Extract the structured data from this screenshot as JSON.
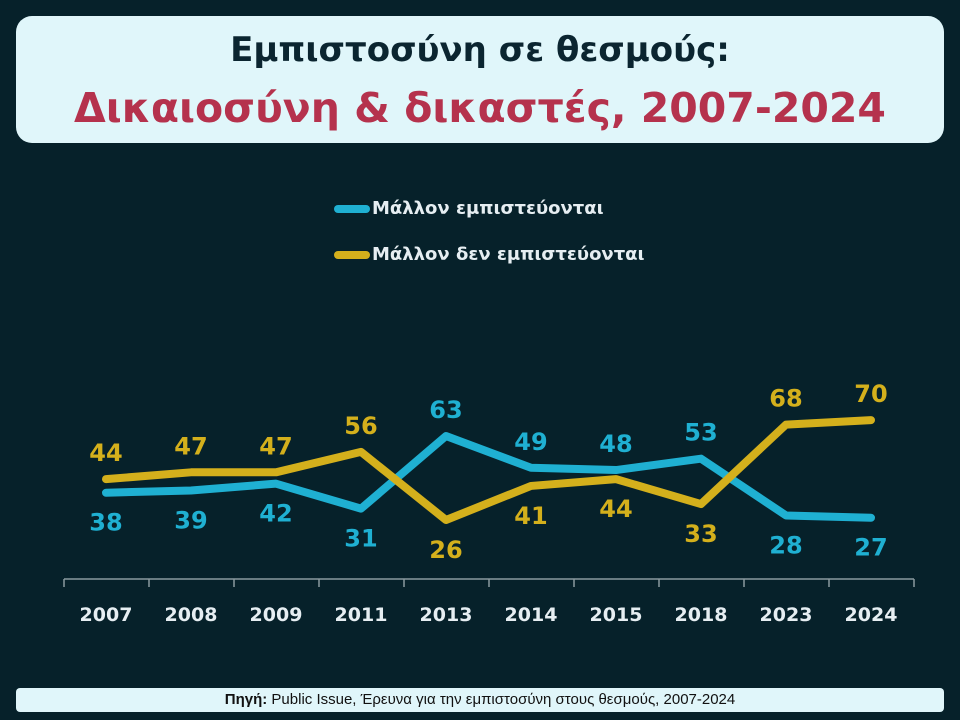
{
  "title": {
    "line1": "Εμπιστοσύνη σε θεσμούς:",
    "line2": "Δικαιοσύνη & δικαστές, 2007-2024"
  },
  "source": {
    "label": "Πηγή:",
    "text": " Public Issue, Έρευνα για την εμπιστοσύνη στους θεσμούς, 2007-2024"
  },
  "chart_data": {
    "type": "line",
    "categories": [
      "2007",
      "2008",
      "2009",
      "2011",
      "2013",
      "2014",
      "2015",
      "2018",
      "2023",
      "2024"
    ],
    "series": [
      {
        "name": "Μάλλον εμπιστεύονται",
        "color": "#1fb0d2",
        "values": [
          38,
          39,
          42,
          31,
          63,
          49,
          48,
          53,
          28,
          27
        ]
      },
      {
        "name": "Μάλλον δεν εμπιστεύονται",
        "color": "#d4b01c",
        "values": [
          44,
          47,
          47,
          56,
          26,
          41,
          44,
          33,
          68,
          70
        ]
      }
    ],
    "legend": "top-center",
    "grid": false,
    "data_labels": true
  }
}
